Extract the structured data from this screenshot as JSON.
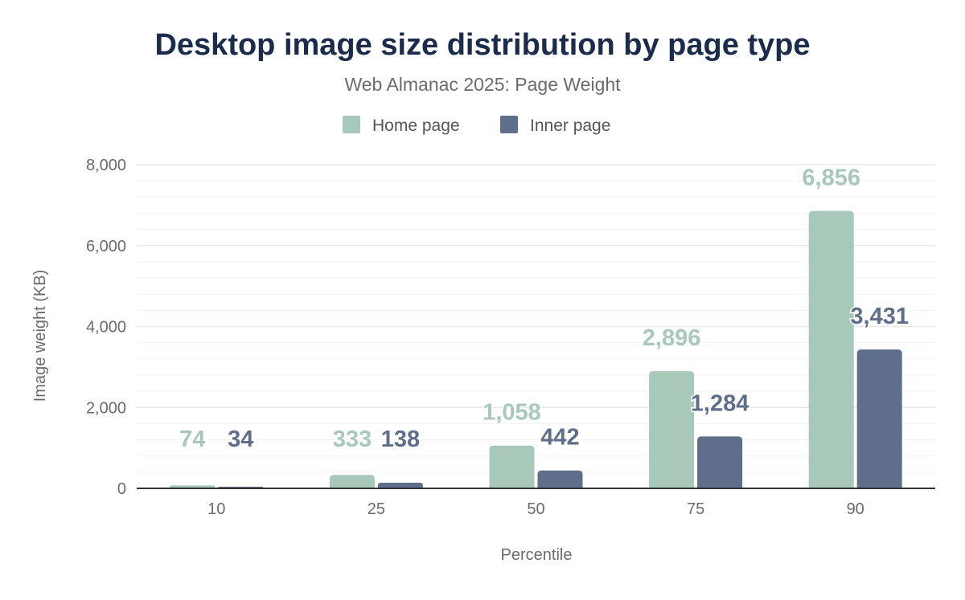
{
  "chart_data": {
    "type": "bar",
    "title": "Desktop image size distribution by page type",
    "subtitle": "Web Almanac 2025: Page Weight",
    "xlabel": "Percentile",
    "ylabel": "Image weight (KB)",
    "categories": [
      "10",
      "25",
      "50",
      "75",
      "90"
    ],
    "series": [
      {
        "name": "Home page",
        "values": [
          74,
          333,
          1058,
          2896,
          6856
        ],
        "labels": [
          "74",
          "333",
          "1,058",
          "2,896",
          "6,856"
        ],
        "color": "#a8c9ba"
      },
      {
        "name": "Inner page",
        "values": [
          34,
          138,
          442,
          1284,
          3431
        ],
        "labels": [
          "34",
          "138",
          "442",
          "1,284",
          "3,431"
        ],
        "color": "#5f6e8a"
      }
    ],
    "ylim": [
      0,
      8000
    ],
    "yticks": [
      0,
      2000,
      4000,
      6000,
      8000
    ],
    "ytick_labels": [
      "0",
      "2,000",
      "4,000",
      "6,000",
      "8,000"
    ],
    "minor_grid_step": 400,
    "grid": true,
    "legend_placement": "top-center",
    "title_color": "#1a2b4c"
  }
}
